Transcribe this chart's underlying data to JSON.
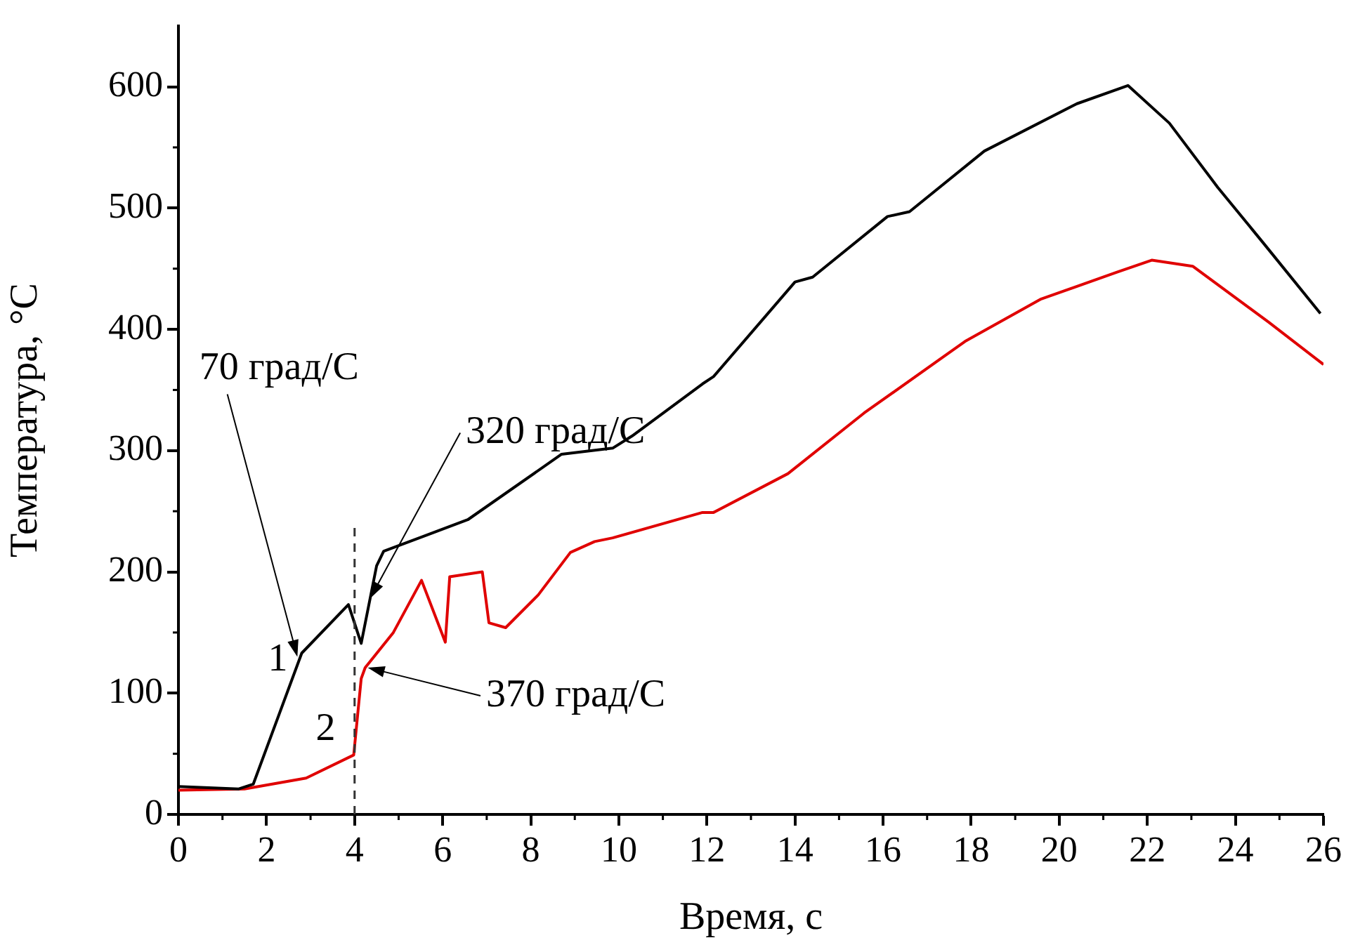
{
  "chart_data": {
    "type": "line",
    "xlabel": "Время, с",
    "ylabel": "Температура, °С",
    "xlim": [
      0,
      26
    ],
    "xticks": [
      0,
      2,
      4,
      6,
      8,
      10,
      12,
      14,
      16,
      18,
      20,
      22,
      24,
      26
    ],
    "ylim": [
      0,
      650
    ],
    "yticks": [
      0,
      100,
      200,
      300,
      400,
      500,
      600
    ],
    "grid": false,
    "marker": "none",
    "line_style": "solid",
    "series": [
      {
        "name": "1",
        "color": "#000000",
        "x": [
          0,
          1.37,
          1.7,
          2.8,
          3.86,
          4.15,
          4.5,
          4.66,
          6.57,
          8.7,
          9.86,
          10.3,
          11.9,
          12.15,
          14.0,
          14.4,
          16.1,
          16.6,
          18.3,
          20.4,
          21.56,
          22.5,
          23.6,
          24.66,
          25.93
        ],
        "values": [
          23,
          21,
          25,
          133,
          173,
          141,
          205,
          217,
          243,
          297,
          302,
          312,
          355,
          361,
          439,
          443,
          493,
          497,
          547,
          586,
          601,
          570,
          517,
          470,
          413
        ]
      },
      {
        "name": "2",
        "color": "#e00000",
        "x": [
          0,
          1.5,
          2.9,
          3.98,
          4.15,
          4.24,
          4.88,
          5.52,
          6.06,
          6.16,
          6.9,
          7.05,
          7.43,
          8.17,
          8.9,
          9.45,
          9.86,
          11.9,
          12.15,
          13.84,
          15.57,
          17.86,
          19.59,
          21.3,
          22.1,
          23.03,
          24.75,
          26
        ],
        "values": [
          20,
          21,
          30,
          49,
          112,
          121,
          150,
          193,
          142,
          196,
          200,
          158,
          154,
          181,
          216,
          225,
          228,
          249,
          249,
          281,
          331,
          390,
          425,
          447,
          457,
          452,
          406,
          371
        ]
      }
    ],
    "ref_lines": [
      {
        "axis": "x",
        "value": 4,
        "line_style": "dashed",
        "color": "#333333"
      }
    ],
    "annotations": [
      {
        "text": "70 град/С",
        "x": 2.7,
        "y": 130
      },
      {
        "text": "320 град/С",
        "x": 4.35,
        "y": 178
      },
      {
        "text": "370 град/С",
        "x": 4.3,
        "y": 121
      }
    ]
  }
}
